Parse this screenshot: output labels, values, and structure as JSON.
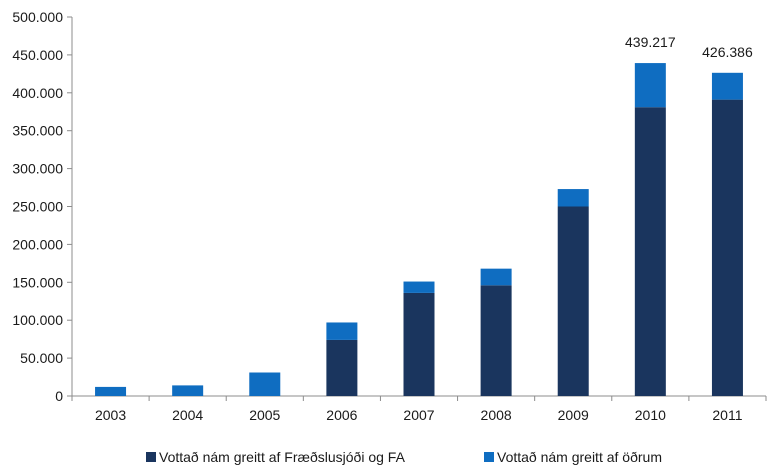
{
  "chart_data": {
    "type": "bar",
    "stacked": true,
    "categories": [
      "2003",
      "2004",
      "2005",
      "2006",
      "2007",
      "2008",
      "2009",
      "2010",
      "2011"
    ],
    "series": [
      {
        "name": "Vottað nám greitt af Fræðslusjóði og FA",
        "color": "#1a355e",
        "values": [
          0,
          0,
          0,
          74000,
          136000,
          146000,
          250000,
          381000,
          391000
        ]
      },
      {
        "name": "Vottað nám greitt af öðrum",
        "color": "#0f6dc1",
        "values": [
          12000,
          14000,
          31000,
          23000,
          15000,
          22000,
          23000,
          58217,
          35386
        ]
      }
    ],
    "data_labels": [
      {
        "category": "2010",
        "text": "439.217"
      },
      {
        "category": "2011",
        "text": "426.386"
      }
    ],
    "y_ticks": [
      {
        "value": 0,
        "label": "0"
      },
      {
        "value": 50000,
        "label": "50.000"
      },
      {
        "value": 100000,
        "label": "100.000"
      },
      {
        "value": 150000,
        "label": "150.000"
      },
      {
        "value": 200000,
        "label": "200.000"
      },
      {
        "value": 250000,
        "label": "250.000"
      },
      {
        "value": 300000,
        "label": "300.000"
      },
      {
        "value": 350000,
        "label": "350.000"
      },
      {
        "value": 400000,
        "label": "400.000"
      },
      {
        "value": 450000,
        "label": "450.000"
      },
      {
        "value": 500000,
        "label": "500.000"
      }
    ],
    "ylim": [
      0,
      500000
    ],
    "grid": false,
    "legend_position": "bottom",
    "title": "",
    "xlabel": "",
    "ylabel": ""
  }
}
